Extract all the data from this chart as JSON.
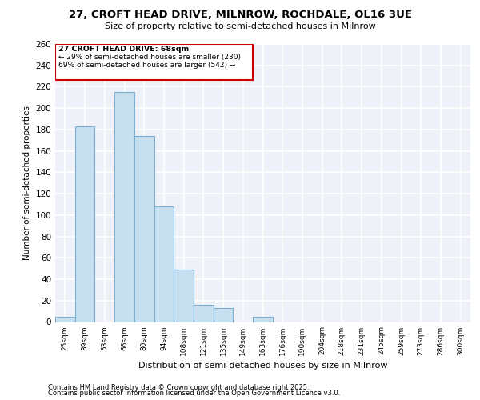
{
  "title": "27, CROFT HEAD DRIVE, MILNROW, ROCHDALE, OL16 3UE",
  "subtitle": "Size of property relative to semi-detached houses in Milnrow",
  "xlabel": "Distribution of semi-detached houses by size in Milnrow",
  "ylabel": "Number of semi-detached properties",
  "bar_labels": [
    "25sqm",
    "39sqm",
    "53sqm",
    "66sqm",
    "80sqm",
    "94sqm",
    "108sqm",
    "121sqm",
    "135sqm",
    "149sqm",
    "163sqm",
    "176sqm",
    "190sqm",
    "204sqm",
    "218sqm",
    "231sqm",
    "245sqm",
    "259sqm",
    "273sqm",
    "286sqm",
    "300sqm"
  ],
  "bar_values": [
    5,
    183,
    0,
    215,
    174,
    108,
    49,
    16,
    13,
    0,
    5,
    0,
    0,
    0,
    0,
    0,
    0,
    0,
    0,
    0,
    0
  ],
  "bar_color": "#c8dff0",
  "bar_edge_color": "#7aafd4",
  "property_label": "27 CROFT HEAD DRIVE: 68sqm",
  "pct_smaller": 29,
  "count_smaller": 230,
  "pct_larger": 69,
  "count_larger": 542,
  "annotation_box_color": "#cc0000",
  "background_color": "#eef2f8",
  "grid_color": "#ffffff",
  "ylim": [
    0,
    260
  ],
  "yticks": [
    0,
    20,
    40,
    60,
    80,
    100,
    120,
    140,
    160,
    180,
    200,
    220,
    240,
    260
  ],
  "footer_line1": "Contains HM Land Registry data © Crown copyright and database right 2025.",
  "footer_line2": "Contains public sector information licensed under the Open Government Licence v3.0."
}
